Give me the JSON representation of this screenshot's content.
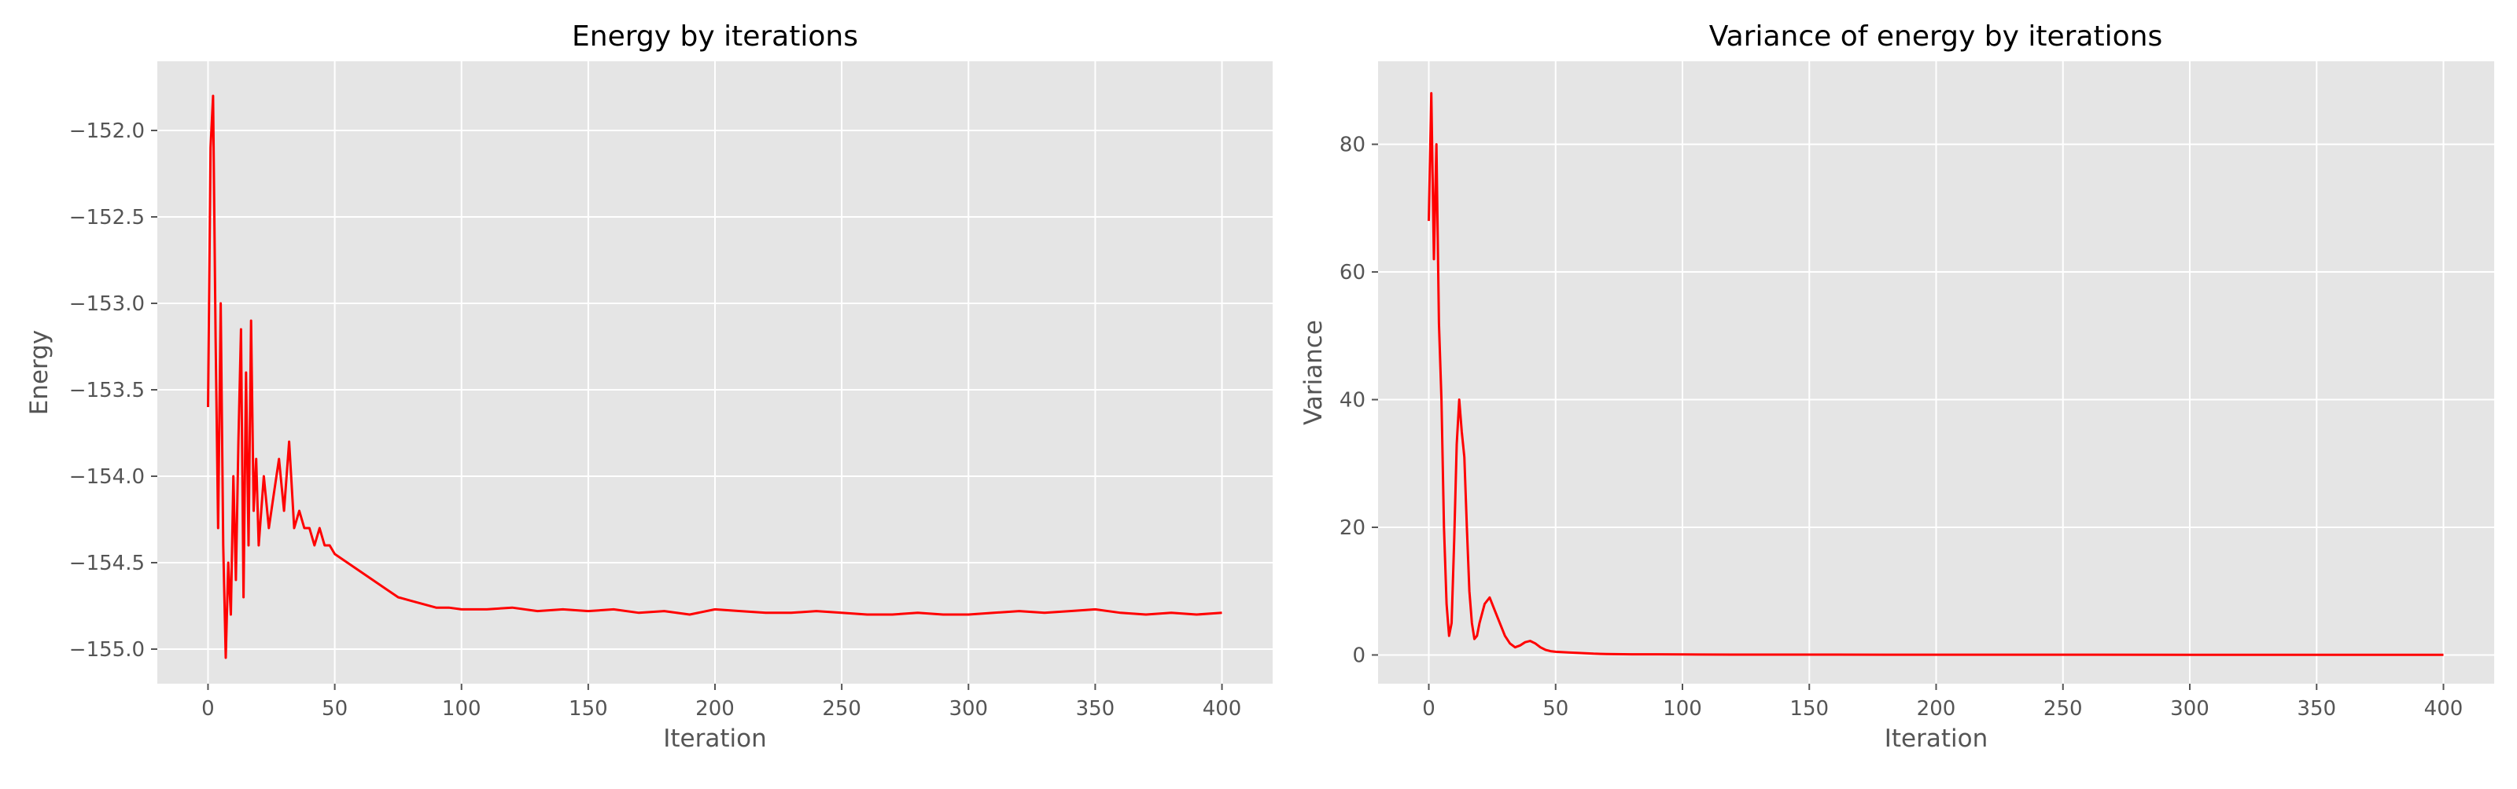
{
  "chart_data": [
    {
      "type": "line",
      "title": "Energy by iterations",
      "xlabel": "Iteration",
      "ylabel": "Energy",
      "xlim": [
        -20,
        420
      ],
      "ylim": [
        -155.2,
        -151.6
      ],
      "xticks": [
        0,
        50,
        100,
        150,
        200,
        250,
        300,
        350,
        400
      ],
      "xtick_labels": [
        "0",
        "50",
        "100",
        "150",
        "200",
        "250",
        "300",
        "350",
        "400"
      ],
      "yticks": [
        -155.0,
        -154.5,
        -154.0,
        -153.5,
        -153.0,
        -152.5,
        -152.0
      ],
      "ytick_labels": [
        "−155.0",
        "−154.5",
        "−154.0",
        "−153.5",
        "−153.0",
        "−152.5",
        "−152.0"
      ],
      "grid": true,
      "series": [
        {
          "color": "#ff0000",
          "x": [
            0,
            1,
            2,
            3,
            4,
            5,
            6,
            7,
            8,
            9,
            10,
            11,
            12,
            13,
            14,
            15,
            16,
            17,
            18,
            19,
            20,
            22,
            24,
            26,
            28,
            30,
            32,
            34,
            36,
            38,
            40,
            42,
            44,
            46,
            48,
            50,
            55,
            60,
            65,
            70,
            75,
            80,
            85,
            90,
            95,
            100,
            110,
            120,
            130,
            140,
            150,
            160,
            170,
            180,
            190,
            200,
            210,
            220,
            230,
            240,
            250,
            260,
            270,
            280,
            290,
            300,
            310,
            320,
            330,
            340,
            350,
            360,
            370,
            380,
            390,
            400
          ],
          "y": [
            -153.6,
            -152.1,
            -151.8,
            -153.2,
            -154.3,
            -153.0,
            -154.4,
            -155.05,
            -154.5,
            -154.8,
            -154.0,
            -154.6,
            -153.8,
            -153.15,
            -154.7,
            -153.4,
            -154.4,
            -153.1,
            -154.2,
            -153.9,
            -154.4,
            -154.0,
            -154.3,
            -154.1,
            -153.9,
            -154.2,
            -153.8,
            -154.3,
            -154.2,
            -154.3,
            -154.3,
            -154.4,
            -154.3,
            -154.4,
            -154.4,
            -154.45,
            -154.5,
            -154.55,
            -154.6,
            -154.65,
            -154.7,
            -154.72,
            -154.74,
            -154.76,
            -154.76,
            -154.77,
            -154.77,
            -154.76,
            -154.78,
            -154.77,
            -154.78,
            -154.77,
            -154.79,
            -154.78,
            -154.8,
            -154.77,
            -154.78,
            -154.79,
            -154.79,
            -154.78,
            -154.79,
            -154.8,
            -154.8,
            -154.79,
            -154.8,
            -154.8,
            -154.79,
            -154.78,
            -154.79,
            -154.78,
            -154.77,
            -154.79,
            -154.8,
            -154.79,
            -154.8,
            -154.79
          ]
        }
      ]
    },
    {
      "type": "line",
      "title": "Variance of energy by iterations",
      "xlabel": "Iteration",
      "ylabel": "Variance",
      "xlim": [
        -20,
        420
      ],
      "ylim": [
        -4.5,
        93
      ],
      "xticks": [
        0,
        50,
        100,
        150,
        200,
        250,
        300,
        350,
        400
      ],
      "xtick_labels": [
        "0",
        "50",
        "100",
        "150",
        "200",
        "250",
        "300",
        "350",
        "400"
      ],
      "yticks": [
        0,
        20,
        40,
        60,
        80
      ],
      "ytick_labels": [
        "0",
        "20",
        "40",
        "60",
        "80"
      ],
      "grid": true,
      "series": [
        {
          "color": "#ff0000",
          "x": [
            0,
            1,
            2,
            3,
            4,
            5,
            6,
            7,
            8,
            9,
            10,
            11,
            12,
            13,
            14,
            15,
            16,
            17,
            18,
            19,
            20,
            22,
            24,
            26,
            28,
            30,
            32,
            34,
            36,
            38,
            40,
            42,
            44,
            46,
            48,
            50,
            55,
            60,
            65,
            70,
            80,
            90,
            100,
            120,
            140,
            160,
            180,
            200,
            250,
            300,
            350,
            400
          ],
          "y": [
            68,
            88,
            62,
            80,
            52,
            40,
            20,
            8,
            3,
            5,
            18,
            33,
            40,
            35,
            31,
            20,
            10,
            5,
            2.5,
            3,
            5,
            8,
            9,
            7,
            5,
            3,
            1.8,
            1.2,
            1.5,
            2,
            2.2,
            1.8,
            1.2,
            0.8,
            0.6,
            0.5,
            0.4,
            0.3,
            0.2,
            0.15,
            0.1,
            0.1,
            0.08,
            0.06,
            0.05,
            0.05,
            0.04,
            0.04,
            0.04,
            0.03,
            0.03,
            0.03
          ]
        }
      ]
    }
  ]
}
